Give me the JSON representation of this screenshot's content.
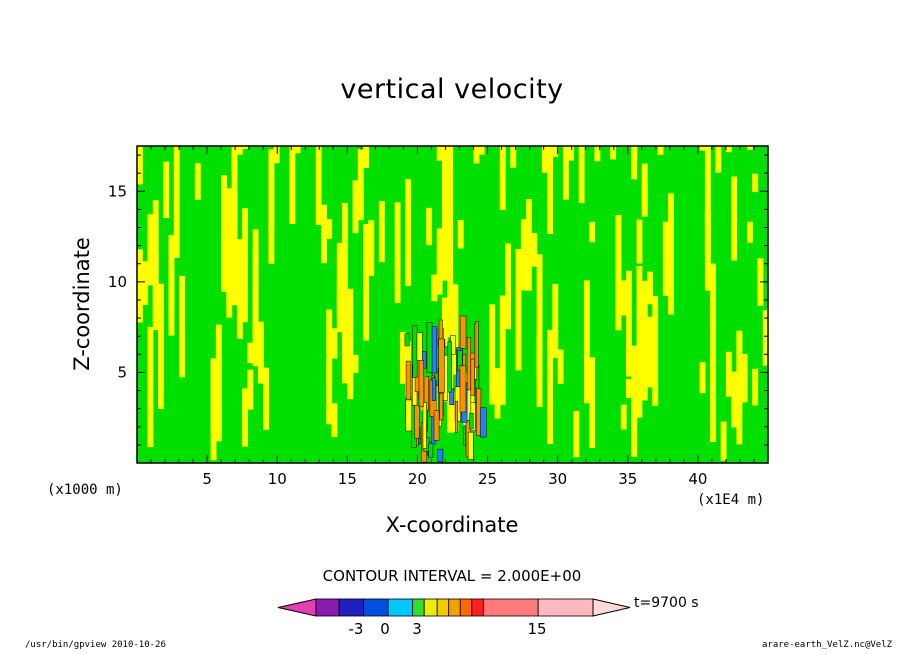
{
  "chart_data": {
    "type": "heatmap",
    "title": "vertical velocity",
    "xlabel": "X-coordinate",
    "ylabel": "Z-coordinate",
    "x_unit_note": "(x1000 m)",
    "x_scale_note": "(x1E4 m)",
    "xlim": [
      0,
      45
    ],
    "ylim": [
      0,
      17.5
    ],
    "x_ticks": [
      "5",
      "10",
      "15",
      "20",
      "25",
      "30",
      "35",
      "40"
    ],
    "y_ticks": [
      "5",
      "10",
      "15"
    ],
    "contour_interval": "CONTOUR INTERVAL = 2.000E+00",
    "time_label": "t=9700 s",
    "colorbar": {
      "levels_labeled": [
        "-3",
        "0",
        "3",
        "15"
      ],
      "colors": [
        "#e040b0",
        "#8a1ab0",
        "#2020c0",
        "#0050e0",
        "#00c8ff",
        "#30e030",
        "#e8f000",
        "#f5c800",
        "#f5a000",
        "#ff6a00",
        "#ff2020",
        "#ff7a7a",
        "#ffb8c0",
        "#ffd8d8"
      ]
    },
    "field_description_colors": {
      "negative_small": "#00e000",
      "positive_small": "#ffff00",
      "positive_mid": "#ff9000",
      "negative_mid": "#2080ff"
    }
  },
  "footer": {
    "left": "/usr/bin/gpview  2010-10-26",
    "right": "arare-earth_VelZ.nc@VelZ"
  }
}
